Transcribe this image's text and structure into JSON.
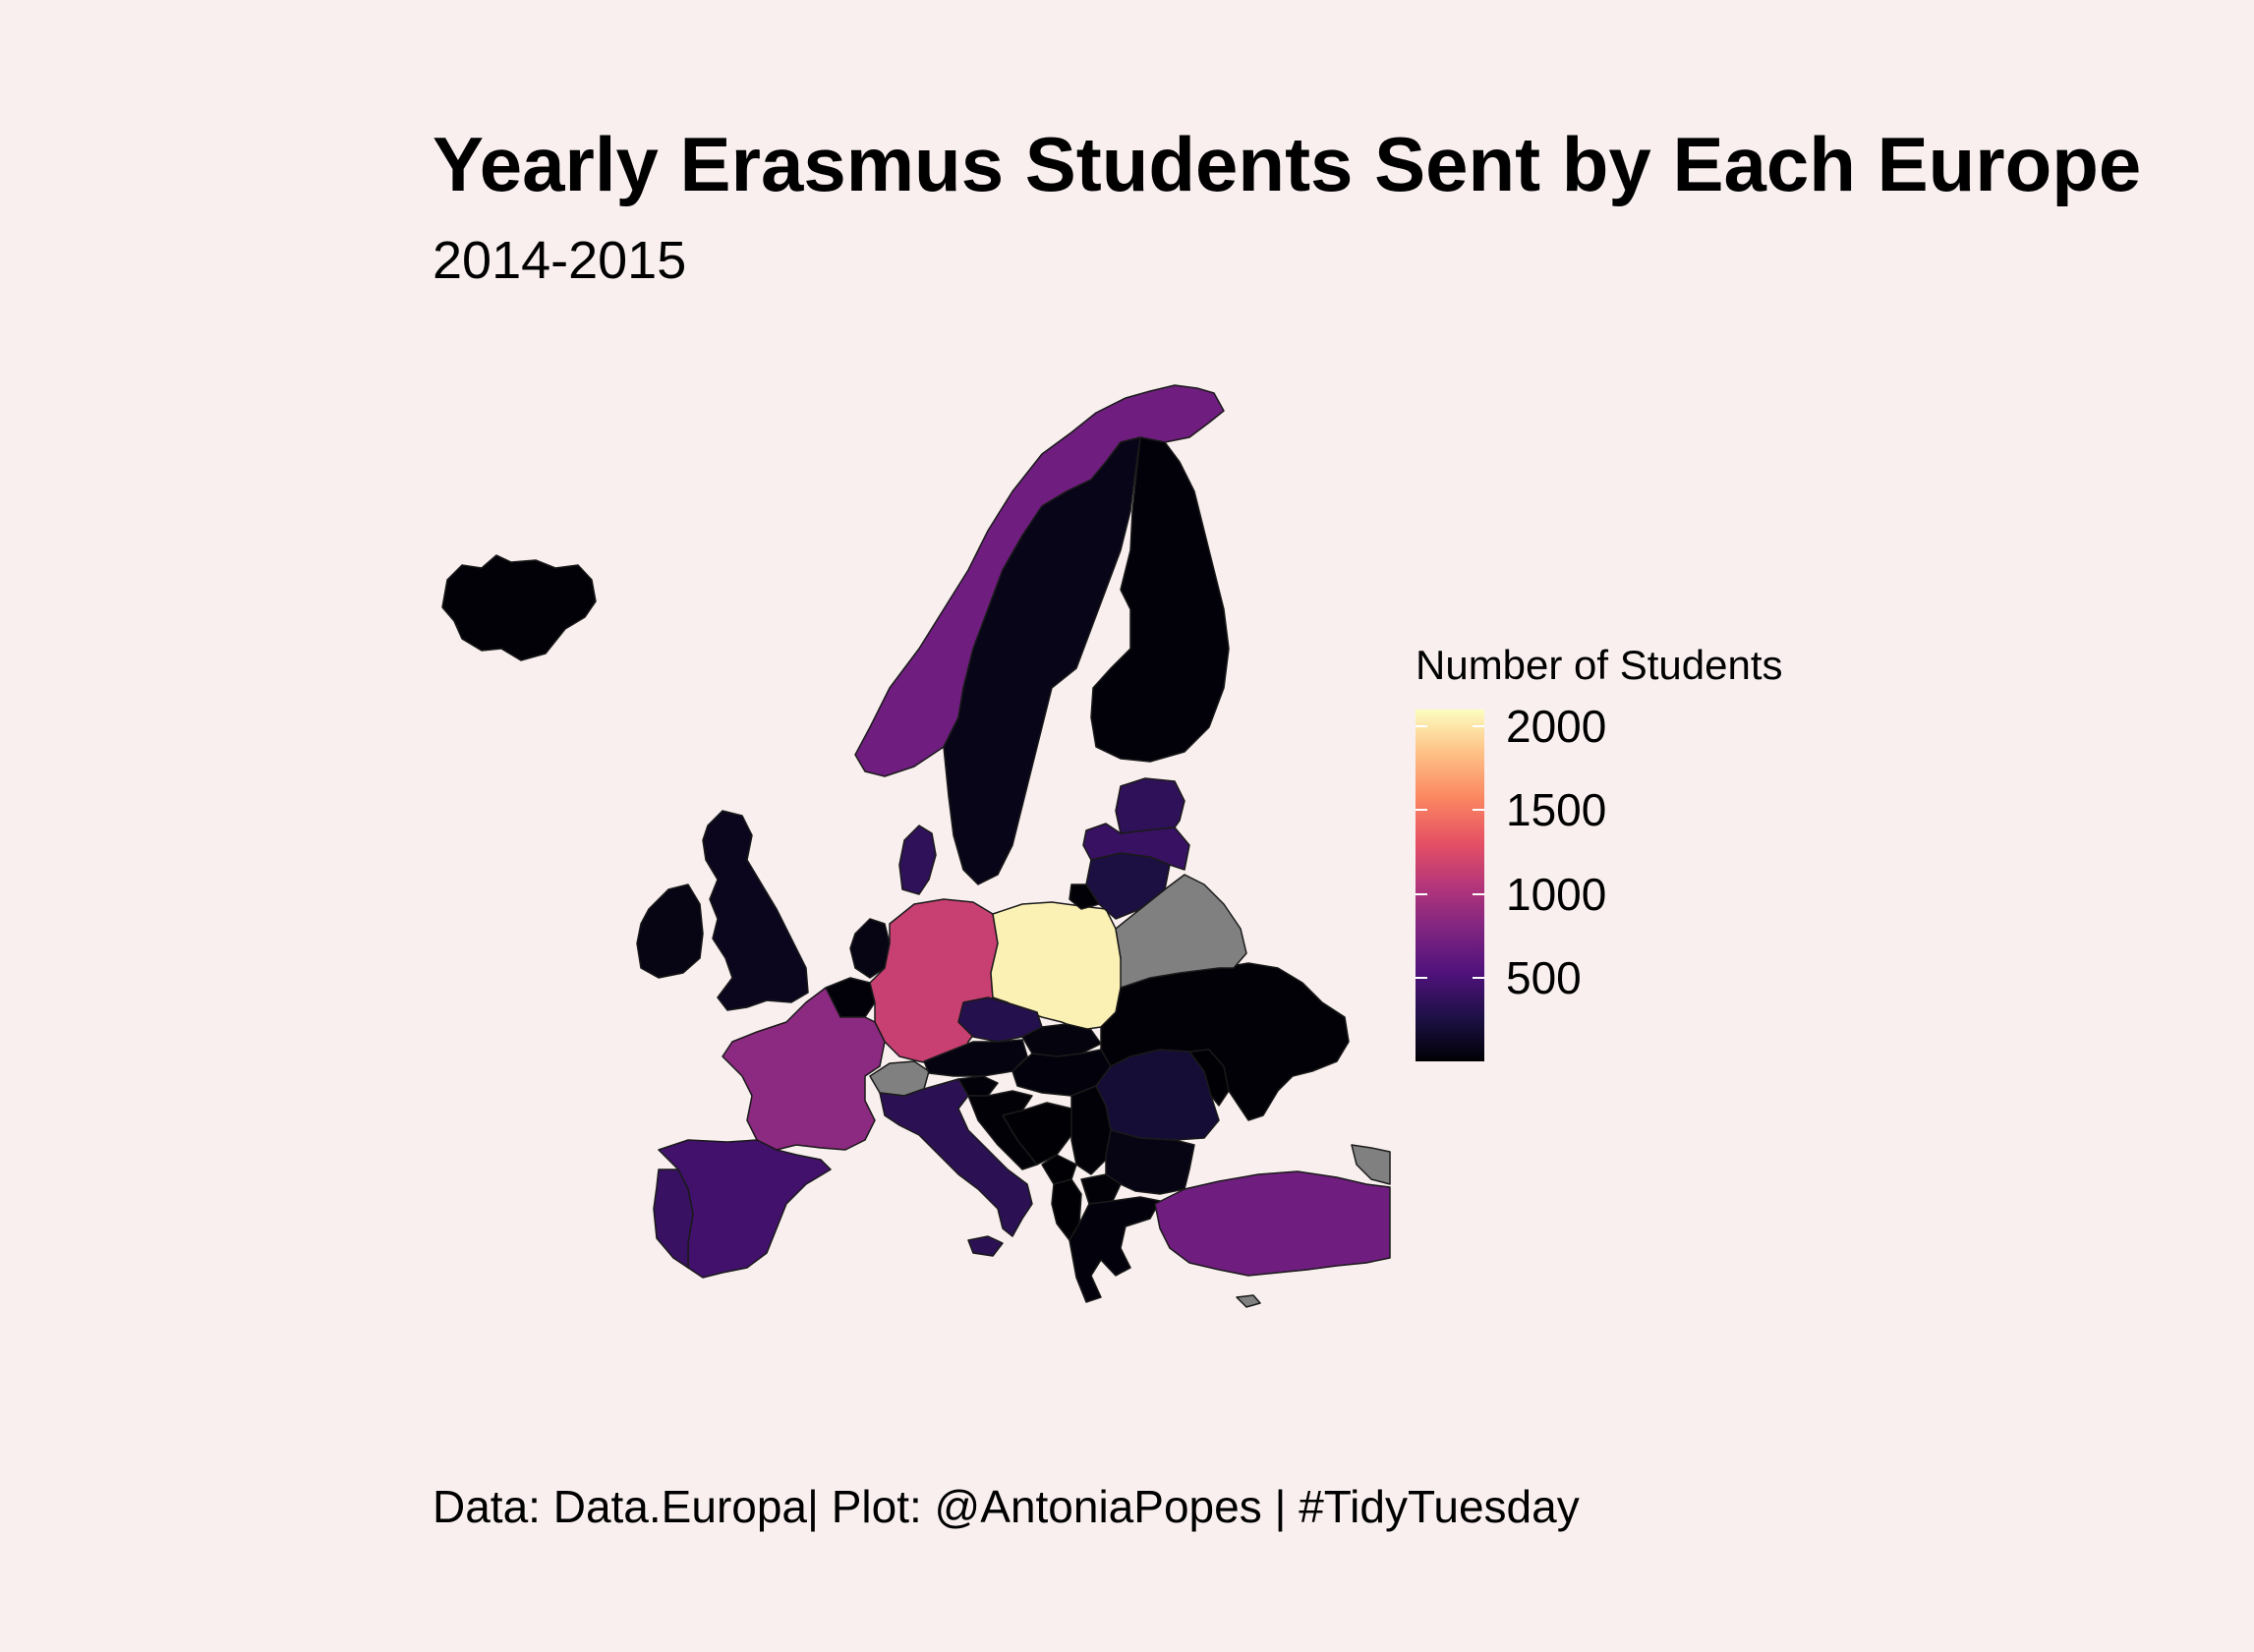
{
  "title": "Yearly Erasmus Students Sent by Each Europe",
  "subtitle": "2014-2015",
  "caption": "Data: Data.Europa| Plot: @AntoniaPopes | #TidyTuesday",
  "legend": {
    "title": "Number of Students",
    "labels": [
      "2000",
      "1500",
      "1000",
      "500"
    ],
    "values": [
      2000,
      1500,
      1000,
      500
    ],
    "range": [
      0,
      2100
    ],
    "palette": "magma",
    "missing_color": "#808080"
  },
  "colors": {
    "background": "#f9efef",
    "border": "#1a1a1a"
  },
  "chart_data": {
    "type": "choropleth",
    "title": "Yearly Erasmus Students Sent by Each Europe",
    "subtitle": "2014-2015",
    "legend_title": "Number of Students",
    "regions": [
      {
        "region": "Iceland",
        "value": 10
      },
      {
        "region": "Norway",
        "value": 700
      },
      {
        "region": "Sweden",
        "value": 80
      },
      {
        "region": "Finland",
        "value": 20
      },
      {
        "region": "Ireland",
        "value": 60
      },
      {
        "region": "United Kingdom",
        "value": 100
      },
      {
        "region": "Denmark",
        "value": 350
      },
      {
        "region": "Netherlands",
        "value": 60
      },
      {
        "region": "Belgium",
        "value": 20
      },
      {
        "region": "Germany",
        "value": 1150
      },
      {
        "region": "Poland",
        "value": 2050
      },
      {
        "region": "France",
        "value": 850
      },
      {
        "region": "Switzerland",
        "value": null
      },
      {
        "region": "Austria",
        "value": 50
      },
      {
        "region": "Czechia",
        "value": 300
      },
      {
        "region": "Slovakia",
        "value": 40
      },
      {
        "region": "Hungary",
        "value": 30
      },
      {
        "region": "Italy",
        "value": 330
      },
      {
        "region": "Spain",
        "value": 450
      },
      {
        "region": "Portugal",
        "value": 400
      },
      {
        "region": "Slovenia",
        "value": 20
      },
      {
        "region": "Croatia",
        "value": 15
      },
      {
        "region": "Bosnia and Herzegovina",
        "value": 5
      },
      {
        "region": "Serbia",
        "value": 10
      },
      {
        "region": "Montenegro",
        "value": 5
      },
      {
        "region": "Albania",
        "value": 5
      },
      {
        "region": "North Macedonia",
        "value": 10
      },
      {
        "region": "Greece",
        "value": 30
      },
      {
        "region": "Bulgaria",
        "value": 60
      },
      {
        "region": "Romania",
        "value": 200
      },
      {
        "region": "Ukraine",
        "value": 10
      },
      {
        "region": "Moldova",
        "value": 5
      },
      {
        "region": "Belarus",
        "value": null
      },
      {
        "region": "Lithuania",
        "value": 250
      },
      {
        "region": "Latvia",
        "value": 400
      },
      {
        "region": "Estonia",
        "value": 350
      },
      {
        "region": "Turkey",
        "value": 700
      },
      {
        "region": "Russia (Kaliningrad)",
        "value": 10
      }
    ]
  }
}
